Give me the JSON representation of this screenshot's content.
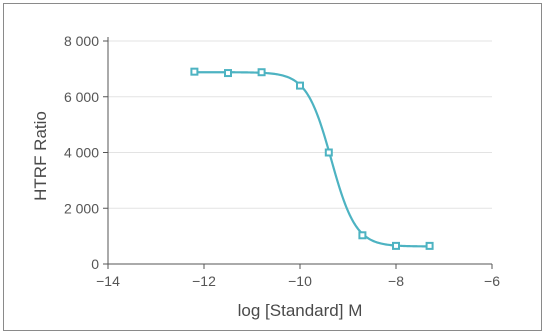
{
  "chart_data": {
    "type": "scatter",
    "title": "",
    "xlabel": "log [Standard] M",
    "ylabel": "HTRF Ratio",
    "xlim": [
      -14,
      -6
    ],
    "ylim": [
      0,
      8000
    ],
    "x_ticks": [
      -14,
      -12,
      -10,
      -8,
      -6
    ],
    "x_tick_labels": [
      "−14",
      "−12",
      "−10",
      "−8",
      "−6"
    ],
    "y_ticks": [
      0,
      2000,
      4000,
      6000,
      8000
    ],
    "y_tick_labels": [
      "0",
      "2 000",
      "4 000",
      "6 000",
      "8 000"
    ],
    "grid": "horizontal",
    "legend": "none",
    "series": [
      {
        "x": [
          -12.2,
          -11.5,
          -10.8,
          -10.0,
          -9.4,
          -8.7,
          -8.0,
          -7.3
        ],
        "y": [
          6900,
          6850,
          6880,
          6400,
          4000,
          1030,
          650,
          650
        ]
      }
    ],
    "fit_curve": {
      "model": "4PL",
      "top": 6880,
      "bottom": 630,
      "logEC50": -9.35,
      "hill": 1.7
    },
    "colors": {
      "series": "#4db3c2",
      "grid": "#e3e3e3",
      "axis": "#555555"
    }
  }
}
